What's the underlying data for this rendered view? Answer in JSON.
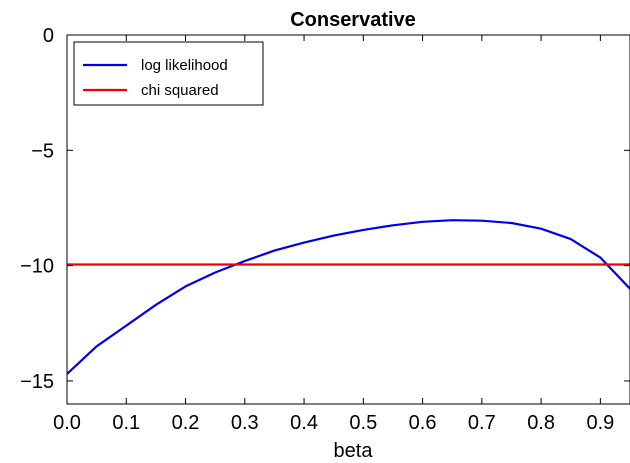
{
  "chart_data": {
    "type": "line",
    "title": "Conservative",
    "xlabel": "beta",
    "ylabel": "",
    "xlim": [
      0.0,
      0.95
    ],
    "ylim": [
      -16,
      0
    ],
    "xticks": [
      0.0,
      0.1,
      0.2,
      0.3,
      0.4,
      0.5,
      0.6,
      0.7,
      0.8,
      0.9
    ],
    "xtick_labels": [
      "0.0",
      "0.1",
      "0.2",
      "0.3",
      "0.4",
      "0.5",
      "0.6",
      "0.7",
      "0.8",
      "0.9"
    ],
    "yticks": [
      0,
      -5,
      -10,
      -15
    ],
    "ytick_labels": [
      "0",
      "−5",
      "−10",
      "−15"
    ],
    "grid": false,
    "legend_position": "top-left",
    "series": [
      {
        "name": "log likelihood",
        "color": "#0000ee",
        "x": [
          0.0,
          0.05,
          0.1,
          0.15,
          0.2,
          0.25,
          0.3,
          0.35,
          0.4,
          0.45,
          0.5,
          0.55,
          0.6,
          0.65,
          0.7,
          0.75,
          0.8,
          0.85,
          0.9,
          0.95
        ],
        "y": [
          -14.7,
          -13.5,
          -12.6,
          -11.7,
          -10.9,
          -10.3,
          -9.8,
          -9.35,
          -9.0,
          -8.7,
          -8.45,
          -8.25,
          -8.1,
          -8.03,
          -8.05,
          -8.15,
          -8.4,
          -8.85,
          -9.65,
          -11.0
        ]
      },
      {
        "name": "chi squared",
        "color": "#ee0000",
        "x": [
          0.0,
          0.95
        ],
        "y": [
          -9.95,
          -9.95
        ]
      }
    ]
  }
}
